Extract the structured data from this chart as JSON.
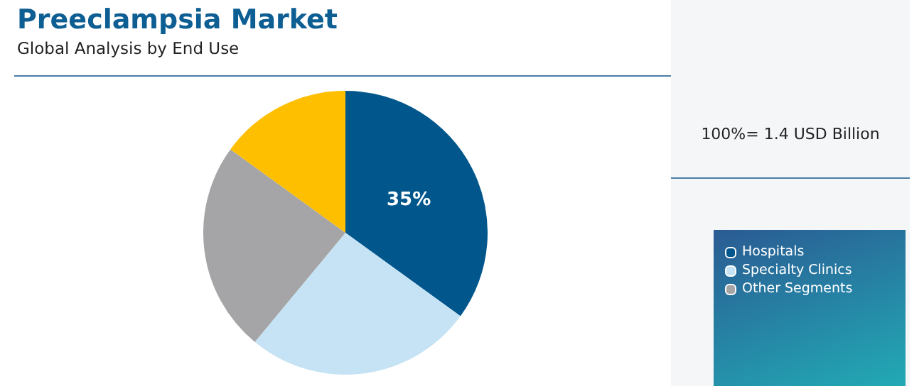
{
  "chart_data": {
    "type": "pie",
    "title": "Preeclampsia Market",
    "subtitle": "Global Analysis by End Use",
    "categories": [
      "Hospitals",
      "Specialty Clinics",
      "Other Segments",
      null
    ],
    "values": [
      35,
      26,
      24,
      15
    ],
    "colors": [
      "#01568c",
      "#c5e3f4",
      "#a5a5a7",
      "#fdbf00"
    ],
    "value_labels": [
      "35%",
      null,
      null,
      null
    ],
    "annotations": [
      "100%= 1.4 USD Billion"
    ],
    "legend": "right"
  }
}
